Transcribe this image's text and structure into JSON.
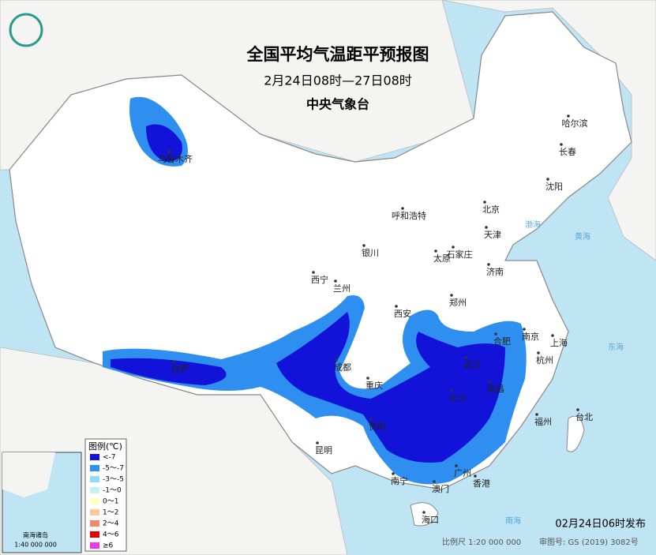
{
  "header": {
    "title": "全国平均气温距平预报图",
    "period": "2月24日08时—27日08时",
    "issuer": "中央气象台"
  },
  "cities": [
    "乌鲁木齐",
    "哈尔滨",
    "长春",
    "沈阳",
    "呼和浩特",
    "北京",
    "天津",
    "银川",
    "石家庄",
    "太原",
    "济南",
    "西宁",
    "兰州",
    "郑州",
    "西安",
    "合肥",
    "南京",
    "上海",
    "武汉",
    "杭州",
    "拉萨",
    "成都",
    "重庆",
    "长沙",
    "南昌",
    "贵阳",
    "福州",
    "台北",
    "昆明",
    "广州",
    "香港",
    "澳门",
    "南宁",
    "海口"
  ],
  "seas": [
    "渤海",
    "黄海",
    "东海",
    "南海"
  ],
  "legend": {
    "title": "图例(℃)",
    "items": [
      {
        "label": "<-7",
        "color": "#1212d8"
      },
      {
        "label": "-5～-7",
        "color": "#2f8ff0"
      },
      {
        "label": "-3～-5",
        "color": "#8ddcf2"
      },
      {
        "label": "-1～0",
        "color": "#c9f1f4"
      },
      {
        "label": "0～1",
        "color": "#ffffbe"
      },
      {
        "label": "1～2",
        "color": "#ffc8a0"
      },
      {
        "label": "2～4",
        "color": "#f08a6a"
      },
      {
        "label": "4～6",
        "color": "#e00000"
      },
      {
        "label": "≥6",
        "color": "#e83ce8"
      }
    ]
  },
  "inset": {
    "label": "南海诸岛",
    "scale": "1:40 000 000"
  },
  "footer": {
    "issued": "02月24日06时发布",
    "scale": "比例尺 1:20 000 000",
    "approval": "审图号: GS (2019) 3082号"
  }
}
